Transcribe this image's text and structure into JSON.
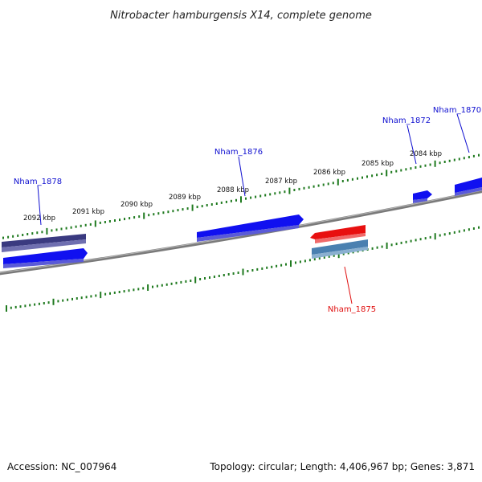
{
  "title": "Nitrobacter hamburgensis X14, complete genome",
  "footer": {
    "accession": "Accession: NC_007964",
    "summary": "Topology: circular; Length: 4,406,967 bp; Genes: 3,871"
  },
  "colors": {
    "backbone": "#7a7a7a",
    "ticks": "#1f7a1f",
    "forward_gene": "#1010f0",
    "dark_gene": "#3a3a80",
    "steel_gene": "#4a80b0",
    "red_gene": "#e81010",
    "label_blue": "#1010d0",
    "label_red": "#e01010"
  },
  "scale": {
    "labels": [
      "2092 kbp",
      "2091 kbp",
      "2090 kbp",
      "2089 kbp",
      "2088 kbp",
      "2087 kbp",
      "2086 kbp",
      "2085 kbp",
      "2084 kbp"
    ]
  },
  "genes": [
    {
      "name": "Nham_1878",
      "color": "label_blue"
    },
    {
      "name": "Nham_1876",
      "color": "label_blue"
    },
    {
      "name": "Nham_1872",
      "color": "label_blue"
    },
    {
      "name": "Nham_1870",
      "color": "label_blue"
    },
    {
      "name": "Nham_1875",
      "color": "label_red"
    }
  ]
}
